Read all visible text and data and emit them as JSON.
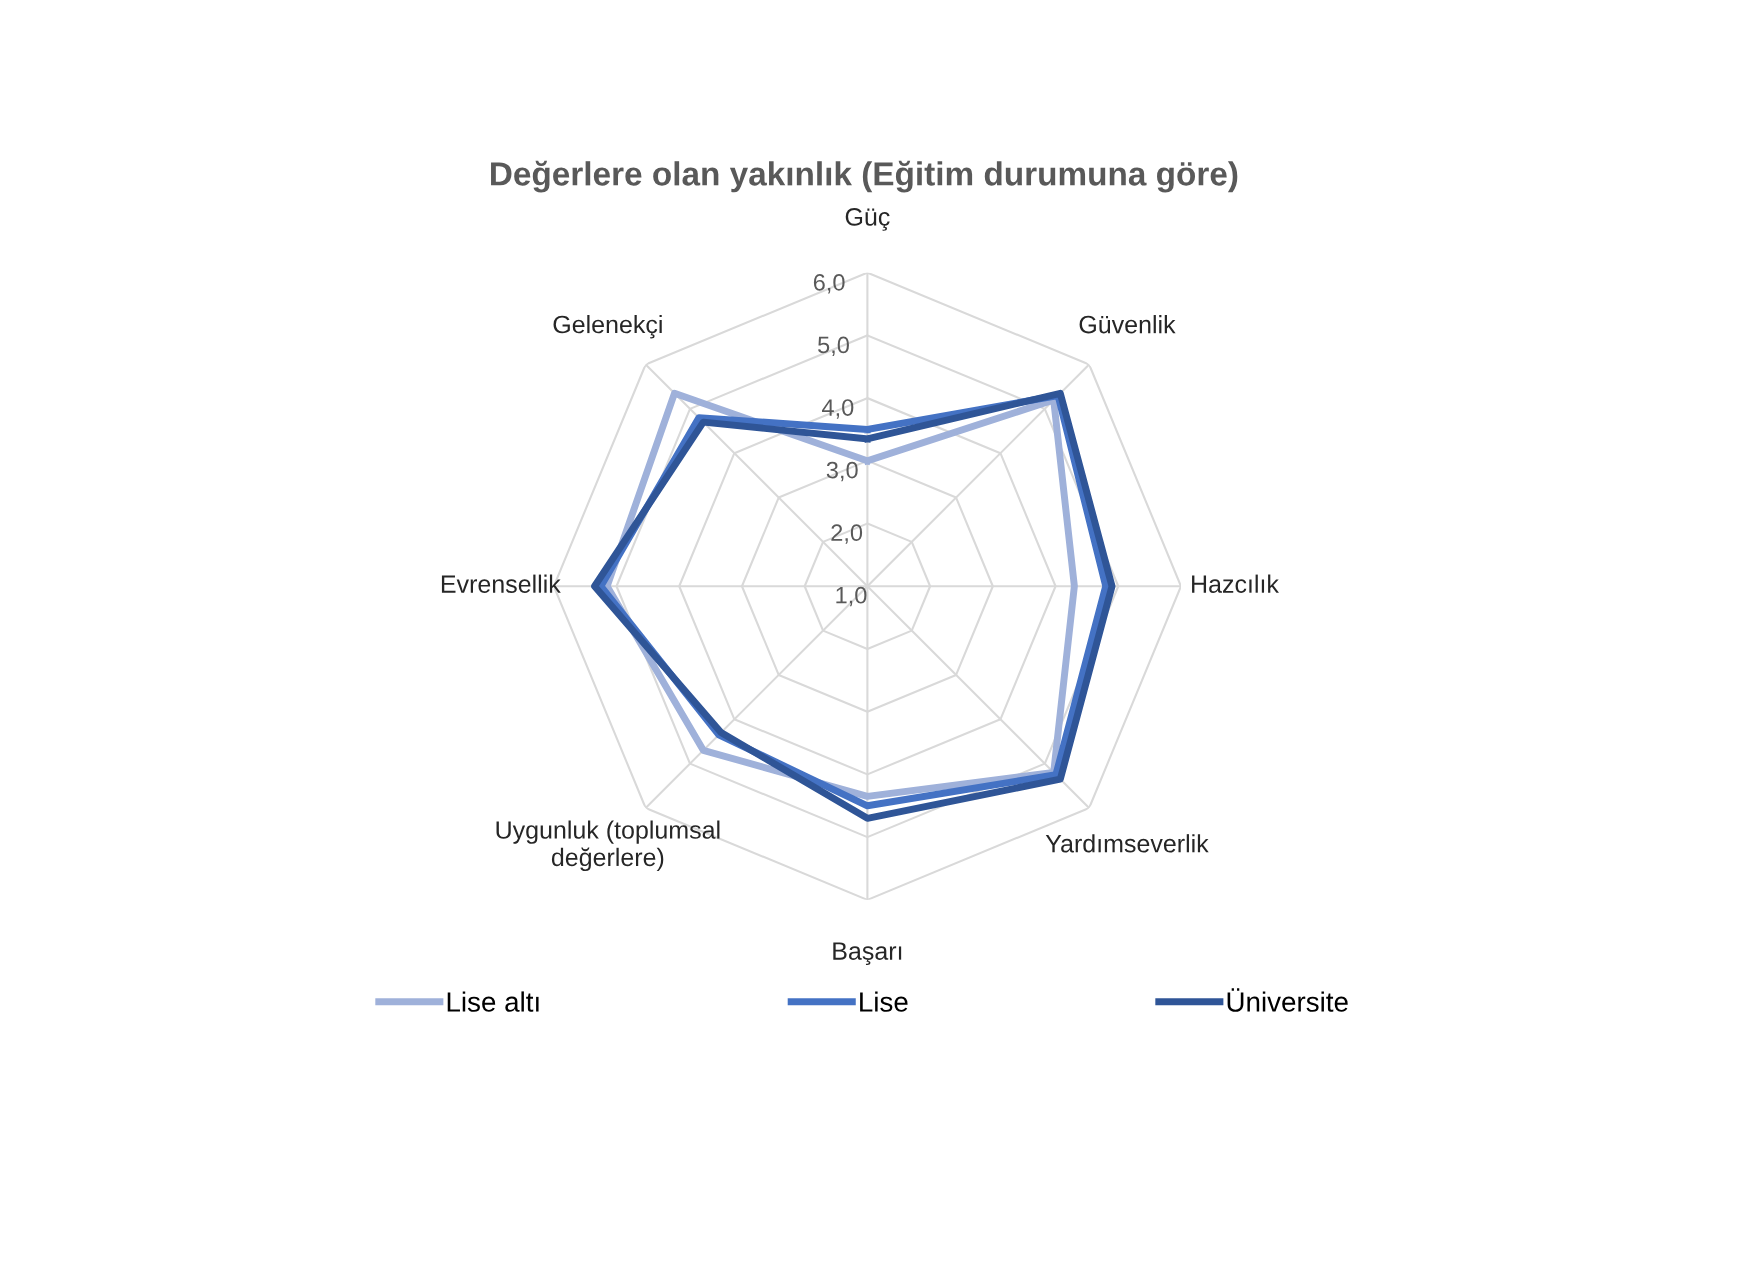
{
  "chart_data": {
    "type": "radar",
    "title": "Değerlere olan yakınlık (Eğitim durumuna göre)",
    "categories": [
      "Güç",
      "Güvenlik",
      "Hazcılık",
      "Yardımseverlik",
      "Başarı",
      "Uygunluk (toplumsal\ndeğerlere)",
      "Evrensellik",
      "Gelenekçi"
    ],
    "series": [
      {
        "name": "Lise altı",
        "color": "#9fb1da",
        "values": [
          3.0,
          5.2,
          4.3,
          5.2,
          4.35,
          4.7,
          5.15,
          5.35
        ]
      },
      {
        "name": "Lise",
        "color": "#4472c4",
        "values": [
          3.5,
          5.3,
          4.8,
          5.25,
          4.5,
          4.35,
          5.25,
          4.8
        ]
      },
      {
        "name": "Üniversite",
        "color": "#2f5597",
        "values": [
          3.35,
          5.35,
          4.9,
          5.35,
          4.7,
          4.3,
          5.35,
          4.7
        ]
      }
    ],
    "ylim": [
      1,
      6
    ],
    "yticks": [
      {
        "value": 1,
        "label": "1,0"
      },
      {
        "value": 2,
        "label": "2,0"
      },
      {
        "value": 3,
        "label": "3,0"
      },
      {
        "value": 4,
        "label": "4,0"
      },
      {
        "value": 5,
        "label": "5,0"
      },
      {
        "value": 6,
        "label": "6,0"
      }
    ],
    "grid": true,
    "legend": "bottom",
    "line_style": "solid",
    "marker": "none"
  }
}
